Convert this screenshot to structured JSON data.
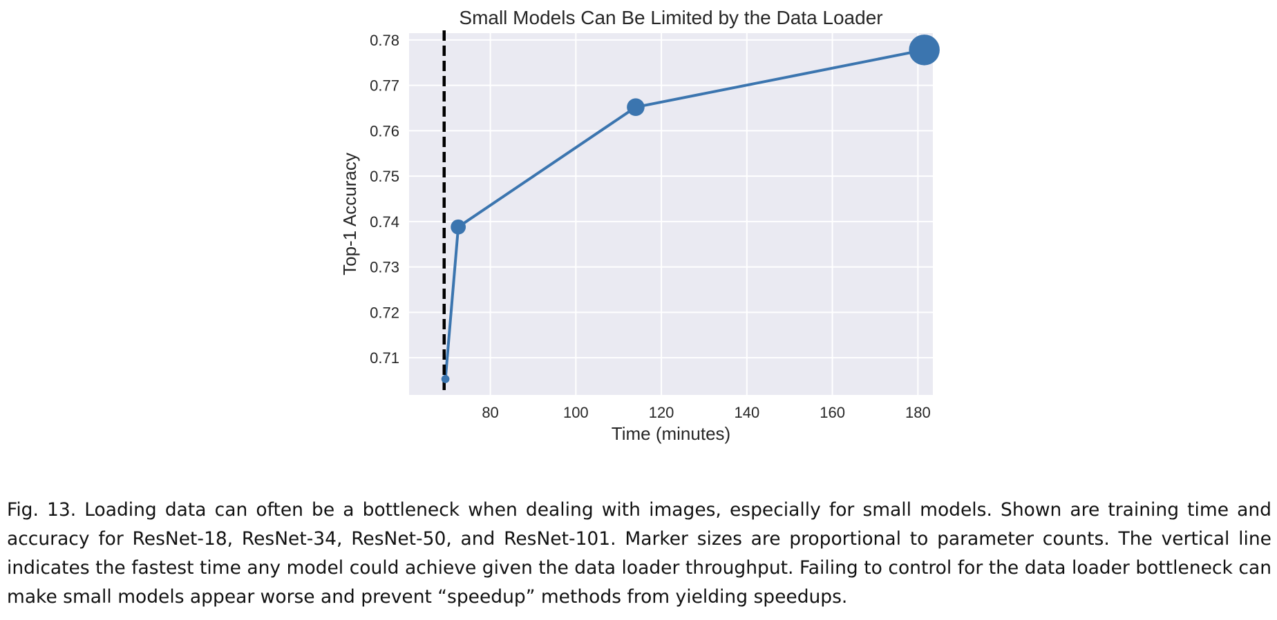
{
  "chart_data": {
    "type": "scatter",
    "title": "Small Models Can Be Limited by the Data Loader",
    "xlabel": "Time (minutes)",
    "ylabel": "Top-1 Accuracy",
    "xlim": [
      61,
      183.5
    ],
    "ylim": [
      0.7018,
      0.7815
    ],
    "xticks": [
      80,
      100,
      120,
      140,
      160,
      180
    ],
    "xtick_labels": [
      "80",
      "100",
      "120",
      "140",
      "160",
      "180"
    ],
    "yticks": [
      0.71,
      0.72,
      0.73,
      0.74,
      0.75,
      0.76,
      0.77,
      0.78
    ],
    "ytick_labels": [
      "0.71",
      "0.72",
      "0.73",
      "0.74",
      "0.75",
      "0.76",
      "0.77",
      "0.78"
    ],
    "grid": true,
    "connected": true,
    "series": [
      {
        "x": [
          69.5,
          72.5,
          114.0,
          181.5
        ],
        "y": [
          0.7053,
          0.7388,
          0.7652,
          0.7778
        ],
        "marker_size_relative": [
          11.7,
          21.8,
          25.6,
          44.5
        ]
      }
    ],
    "vertical_line": {
      "x": 69.2,
      "style": "dashed",
      "color": "#000000"
    },
    "colors": {
      "series": "#3b75af",
      "background": "#eaeaf2",
      "grid": "#ffffff"
    }
  },
  "caption": {
    "label": "Fig. 13.",
    "text": "Loading data can often be a bottleneck when dealing with images, especially for small models. Shown are training time and accuracy for ResNet-18, ResNet-34, ResNet-50, and ResNet-101. Marker sizes are proportional to parameter counts. The vertical line indicates the fastest time any model could achieve given the data loader throughput. Failing to control for the data loader bottleneck can make small models appear worse and prevent “speedup” methods from yielding speedups."
  }
}
